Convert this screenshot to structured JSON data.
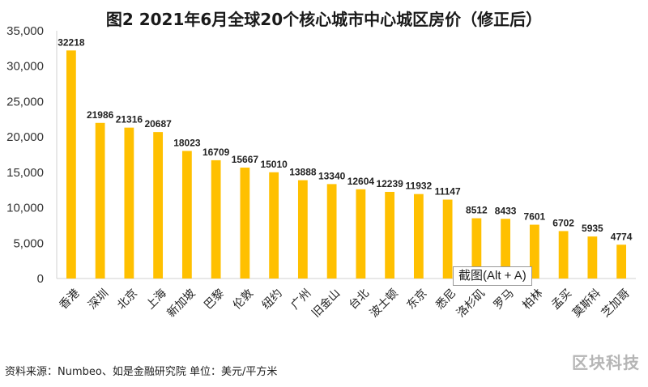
{
  "chart_data": {
    "type": "bar",
    "title": "图2 2021年6月全球20个核心城市中心城区房价（修正后）",
    "categories": [
      "香港",
      "深圳",
      "北京",
      "上海",
      "新加坡",
      "巴黎",
      "伦敦",
      "纽约",
      "广州",
      "旧金山",
      "台北",
      "波士顿",
      "东京",
      "悉尼",
      "洛杉矶",
      "罗马",
      "柏林",
      "孟买",
      "莫斯科",
      "芝加哥"
    ],
    "values": [
      32218,
      21986,
      21316,
      20687,
      18023,
      16709,
      15667,
      15010,
      13888,
      13340,
      12604,
      12239,
      11932,
      11147,
      8512,
      8433,
      7601,
      6702,
      5935,
      4774
    ],
    "data_labels": [
      "32218",
      "21986",
      "21316",
      "20687",
      "18023",
      "16709",
      "15667",
      "15010",
      "13888",
      "13340",
      "12604",
      "12239",
      "11932",
      "11147",
      "8512",
      "8433",
      "7601",
      "6702",
      "5935",
      "4774"
    ],
    "ylim": [
      0,
      35000
    ],
    "yticks": [
      0,
      5000,
      10000,
      15000,
      20000,
      25000,
      30000,
      35000
    ],
    "ytick_labels": [
      "0",
      "5,000",
      "10,000",
      "15,000",
      "20,000",
      "25,000",
      "30,000",
      "35,000"
    ],
    "grid": false,
    "bar_color": "#FFC000"
  },
  "source_note": "资料来源：Numbeo、如是金融研究院    单位：美元/平方米",
  "tooltip_text": "截图(Alt + A)",
  "watermark": "区块科技"
}
